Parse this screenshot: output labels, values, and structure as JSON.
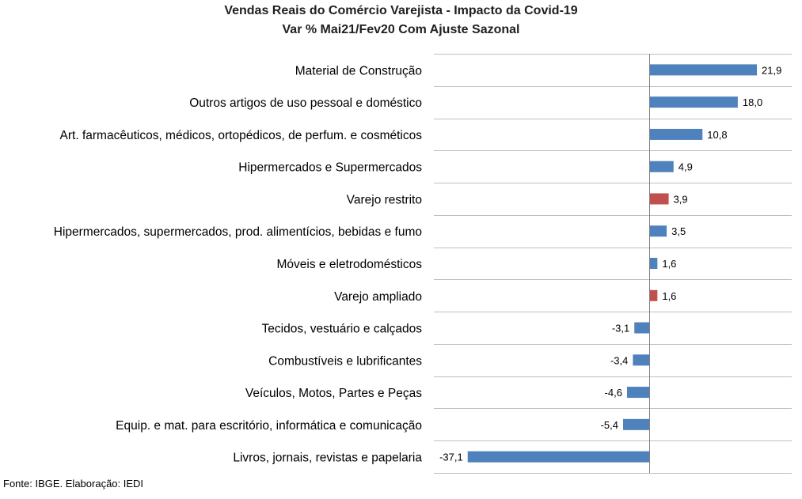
{
  "chart_data": {
    "type": "bar",
    "orientation": "horizontal",
    "title": "Vendas Reais do Comércio Varejista - Impacto da Covid-19",
    "subtitle": "Var % Mai21/Fev20 Com Ajuste Sazonal",
    "categories": [
      "Material de Construção",
      "Outros artigos de uso pessoal e doméstico",
      "Art. farmacêuticos, médicos, ortopédicos, de perfum. e cosméticos",
      "Hipermercados e Supermercados",
      "Varejo restrito",
      "Hipermercados, supermercados, prod. alimentícios, bebidas e fumo",
      "Móveis e eletrodomésticos",
      "Varejo ampliado",
      "Tecidos, vestuário e calçados",
      "Combustíveis e lubrificantes",
      "Veículos, Motos, Partes e Peças",
      "Equip. e mat. para escritório, informática e comunicação",
      "Livros, jornais, revistas e papelaria"
    ],
    "values": [
      21.9,
      18.0,
      10.8,
      4.9,
      3.9,
      3.5,
      1.6,
      1.6,
      -3.1,
      -3.4,
      -4.6,
      -5.4,
      -37.1
    ],
    "value_labels": [
      "21,9",
      "18,0",
      "10,8",
      "4,9",
      "3,9",
      "3,5",
      "1,6",
      "1,6",
      "-3,1",
      "-3,4",
      "-4,6",
      "-5,4",
      "-37,1"
    ],
    "highlight": [
      false,
      false,
      false,
      false,
      true,
      false,
      false,
      true,
      false,
      false,
      false,
      false,
      false
    ],
    "xlim": [
      -44,
      29
    ],
    "grid": "horizontal lines between categories",
    "legend": "none",
    "colors": {
      "bar": "#4f81bd",
      "highlight_bar": "#c0504d",
      "grid": "#bfbfbf",
      "axis": "#7f7f7f"
    }
  },
  "footer": {
    "source": "Fonte: IBGE. Elaboração: IEDI"
  }
}
